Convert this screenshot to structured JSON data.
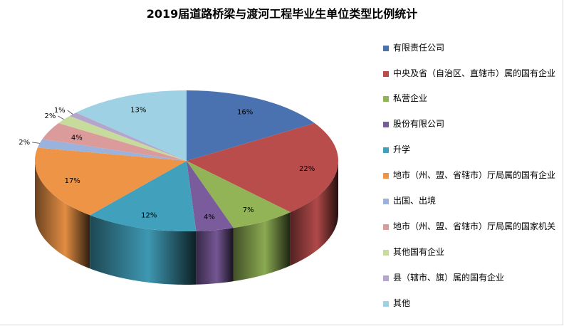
{
  "chart_data": {
    "type": "pie",
    "title": "2019届道路桥梁与渡河工程毕业生单位类型比例统计",
    "legend_position": "right",
    "slices": [
      {
        "label": "有限责任公司",
        "value": 16,
        "display": "16%",
        "color": "#4a72b0"
      },
      {
        "label": "中央及省（自治区、直辖市）属的国有企业",
        "value": 22,
        "display": "22%",
        "color": "#b94d4c"
      },
      {
        "label": "私营企业",
        "value": 7,
        "display": "7%",
        "color": "#92b356"
      },
      {
        "label": "股份有限公司",
        "value": 4,
        "display": "4%",
        "color": "#7a5b9b"
      },
      {
        "label": "升学",
        "value": 12,
        "display": "12%",
        "color": "#41a0bb"
      },
      {
        "label": "地市（州、盟、省辖市）厅局属的国有企业",
        "value": 17,
        "display": "17%",
        "color": "#ee9447"
      },
      {
        "label": "出国、出境",
        "value": 2,
        "display": "2%",
        "color": "#9bb2dc"
      },
      {
        "label": "地市（州、盟、省辖市）厅局属的国家机关",
        "value": 4,
        "display": "4%",
        "color": "#dc9b9b"
      },
      {
        "label": "其他国有企业",
        "value": 2,
        "display": "2%",
        "color": "#c6db9c"
      },
      {
        "label": "县（辖市、旗）属的国有企业",
        "value": 1,
        "display": "1%",
        "color": "#b5a4cb"
      },
      {
        "label": "其他",
        "value": 13,
        "display": "13%",
        "color": "#9dd1e3"
      }
    ]
  }
}
